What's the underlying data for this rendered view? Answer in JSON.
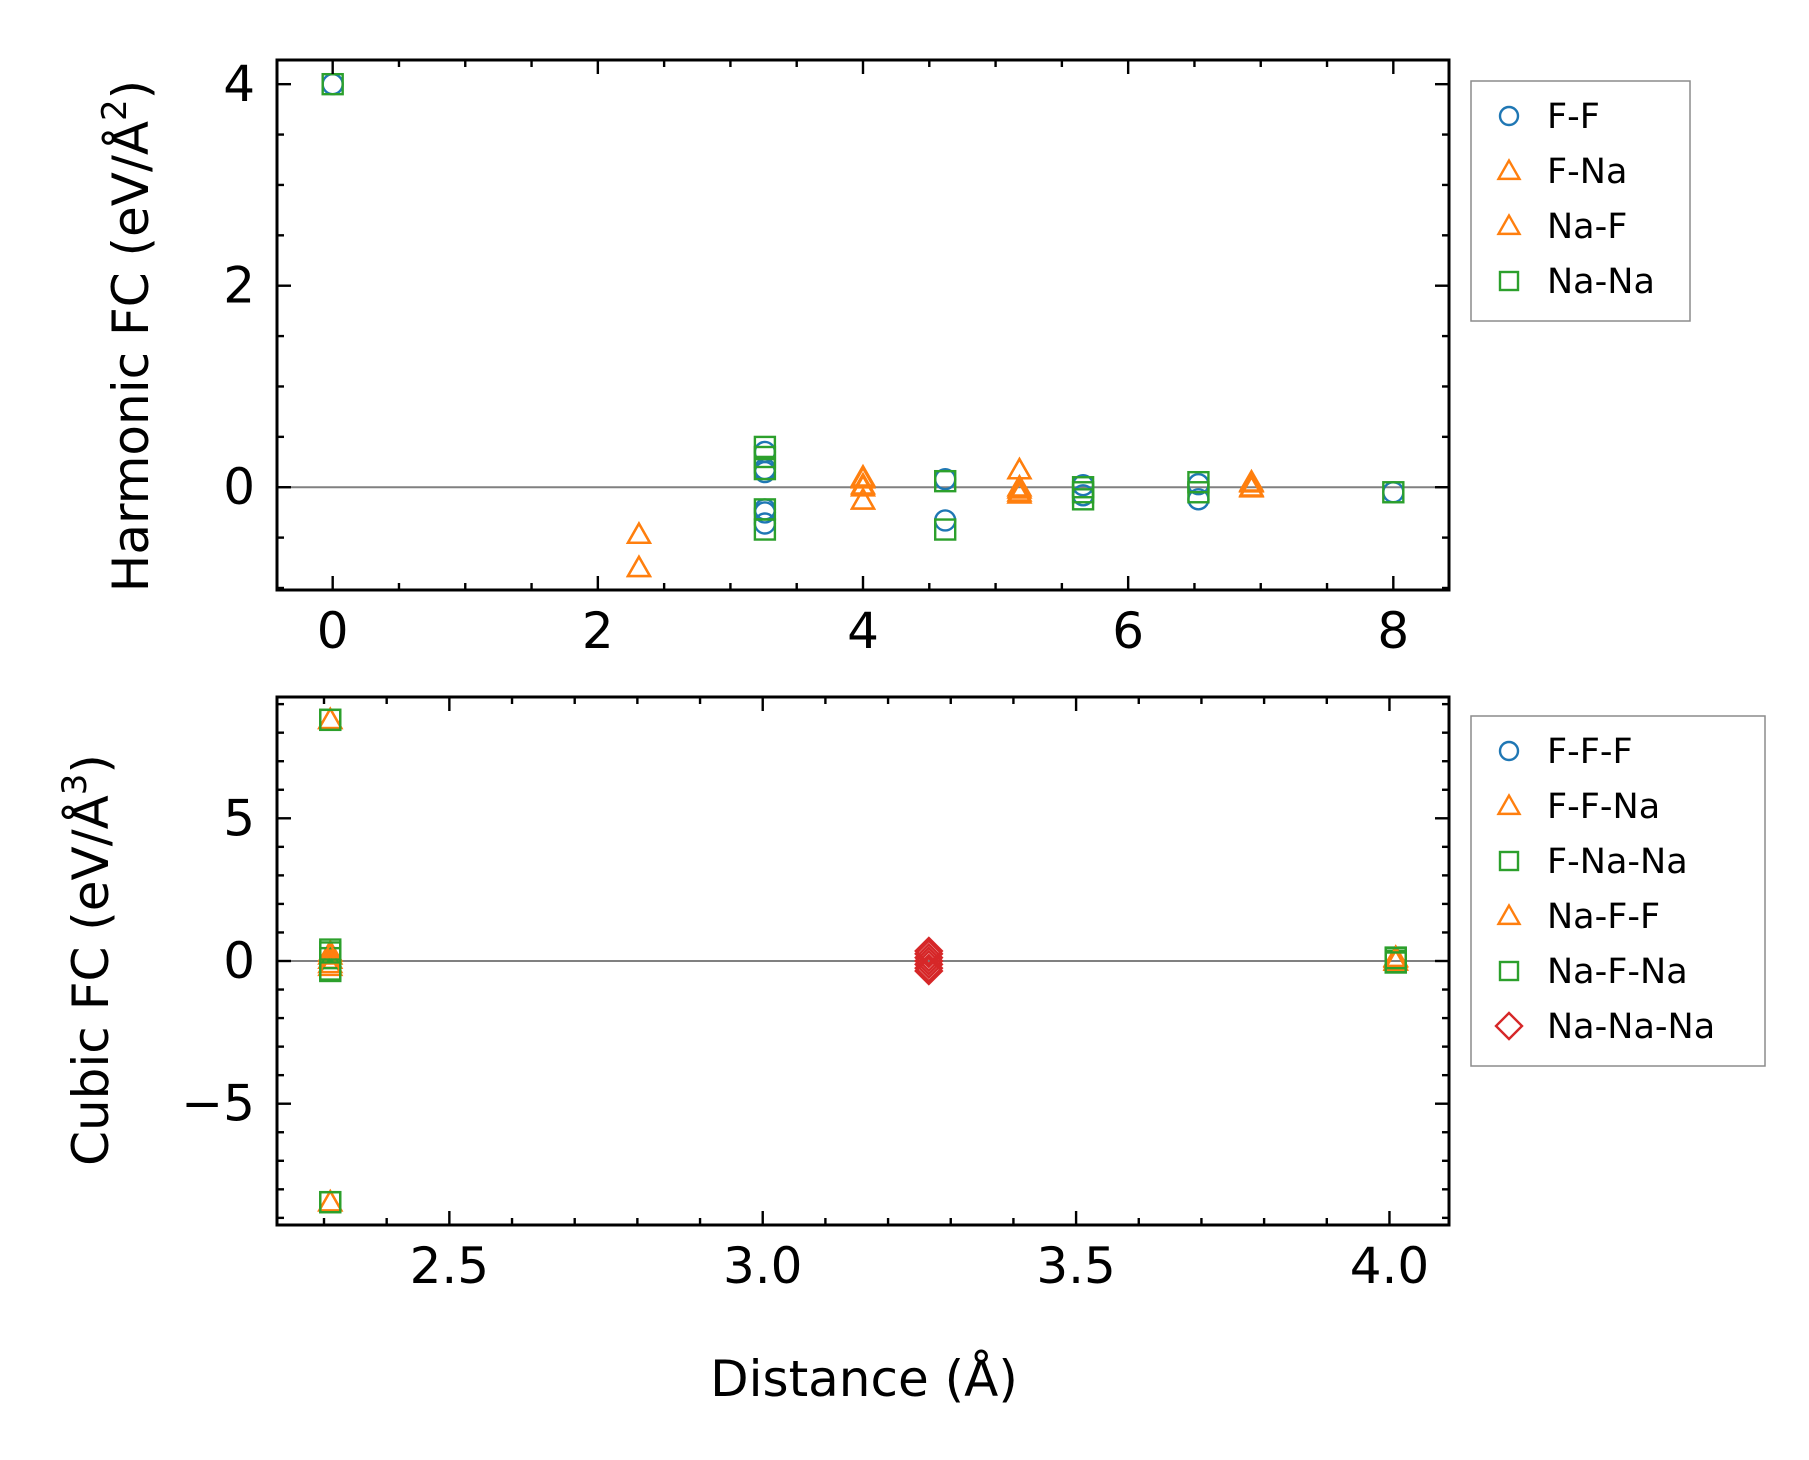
{
  "chart_data": [
    {
      "type": "scatter",
      "ylabel": "Harmonic FC (eV/Å²)",
      "ylabel_main": "Harmonic FC (eV/Å",
      "ylabel_power": "2",
      "ylabel_close": ")",
      "xlabel": "",
      "xlim": [
        -0.42,
        8.42
      ],
      "ylim": [
        -1.02,
        4.24
      ],
      "xticks": [
        0,
        2,
        4,
        6,
        8
      ],
      "xtick_labels": [
        "0",
        "2",
        "4",
        "6",
        "8"
      ],
      "yticks": [
        0,
        2,
        4
      ],
      "ytick_labels": [
        "0",
        "2",
        "4"
      ],
      "zero_line": true,
      "legend": "outside-right-top",
      "series": [
        {
          "name": "F-F",
          "marker": "circle",
          "color": "#1f77b4",
          "x": [
            0,
            3.26,
            3.26,
            3.26,
            3.26,
            3.26,
            3.26,
            4.62,
            4.62,
            5.66,
            5.66,
            6.53,
            6.53,
            8.0
          ],
          "y": [
            4.0,
            0.35,
            0.18,
            0.15,
            -0.22,
            -0.25,
            -0.36,
            0.08,
            -0.33,
            0.02,
            -0.08,
            0.03,
            -0.12,
            -0.05
          ]
        },
        {
          "name": "F-Na",
          "marker": "triangle",
          "color": "#ff7f0e",
          "x": [
            2.31,
            2.31,
            4.0,
            4.0,
            4.0,
            5.18,
            5.18,
            5.18,
            6.93,
            6.93
          ],
          "y": [
            -0.47,
            -0.8,
            0.08,
            0.02,
            -0.13,
            0.17,
            0.0,
            -0.05,
            0.04,
            0.0
          ]
        },
        {
          "name": "Na-F",
          "marker": "triangle",
          "color": "#ff7f0e",
          "x": [
            2.31,
            2.31,
            4.0,
            4.0,
            4.0,
            5.18,
            5.18,
            5.18,
            6.93,
            6.93
          ],
          "y": [
            -0.47,
            -0.8,
            0.1,
            0.0,
            -0.13,
            0.17,
            -0.02,
            -0.07,
            0.05,
            -0.01
          ]
        },
        {
          "name": "Na-Na",
          "marker": "square",
          "color": "#2ca02c",
          "x": [
            0,
            3.26,
            3.26,
            3.26,
            3.26,
            3.26,
            4.62,
            4.62,
            5.66,
            5.66,
            5.66,
            6.53,
            6.53,
            8.0
          ],
          "y": [
            4.0,
            0.4,
            0.3,
            0.18,
            -0.22,
            -0.42,
            0.06,
            -0.42,
            0.0,
            -0.05,
            -0.12,
            0.05,
            -0.05,
            -0.05
          ]
        }
      ]
    },
    {
      "type": "scatter",
      "ylabel": "Cubic FC (eV/Å³)",
      "ylabel_main": "Cubic FC (eV/Å",
      "ylabel_power": "3",
      "ylabel_close": ")",
      "xlabel": "Distance (Å)",
      "xlim": [
        2.225,
        4.095
      ],
      "ylim": [
        -9.25,
        9.25
      ],
      "xticks": [
        2.5,
        3.0,
        3.5,
        4.0
      ],
      "xtick_labels": [
        "2.5",
        "3.0",
        "3.5",
        "4.0"
      ],
      "yticks": [
        -5,
        0,
        5
      ],
      "ytick_labels": [
        "−5",
        "0",
        "5"
      ],
      "zero_line": true,
      "legend": "outside-right-top",
      "series": [
        {
          "name": "F-F-F",
          "marker": "circle",
          "color": "#1f77b4",
          "x": [],
          "y": []
        },
        {
          "name": "F-F-Na",
          "marker": "triangle",
          "color": "#ff7f0e",
          "x": [
            2.31,
            2.31,
            2.31,
            2.31,
            2.31,
            4.01,
            4.01
          ],
          "y": [
            8.45,
            0.3,
            0.05,
            -0.2,
            -8.45,
            0.12,
            0.0
          ]
        },
        {
          "name": "F-Na-Na",
          "marker": "square",
          "color": "#2ca02c",
          "x": [
            2.31,
            2.31,
            2.31,
            2.31,
            2.31,
            4.01,
            4.01,
            4.01
          ],
          "y": [
            8.45,
            0.4,
            0.1,
            -0.35,
            -8.45,
            0.12,
            0.0,
            -0.05
          ]
        },
        {
          "name": "Na-F-F",
          "marker": "triangle",
          "color": "#ff7f0e",
          "x": [
            2.31,
            2.31,
            2.31,
            2.31,
            4.01,
            4.01
          ],
          "y": [
            8.45,
            0.2,
            -0.1,
            -8.45,
            0.08,
            -0.02
          ]
        },
        {
          "name": "Na-F-Na",
          "marker": "square",
          "color": "#2ca02c",
          "x": [
            2.31,
            2.31,
            2.31,
            2.31,
            4.01,
            4.01
          ],
          "y": [
            8.45,
            0.3,
            -0.3,
            -8.45,
            0.1,
            -0.05
          ]
        },
        {
          "name": "Na-Na-Na",
          "marker": "diamond",
          "color": "#d62728",
          "x": [
            3.265,
            3.265,
            3.265,
            3.265,
            3.265,
            3.265,
            3.265
          ],
          "y": [
            0.35,
            0.25,
            0.12,
            0.0,
            -0.12,
            -0.25,
            -0.35
          ]
        }
      ]
    }
  ]
}
